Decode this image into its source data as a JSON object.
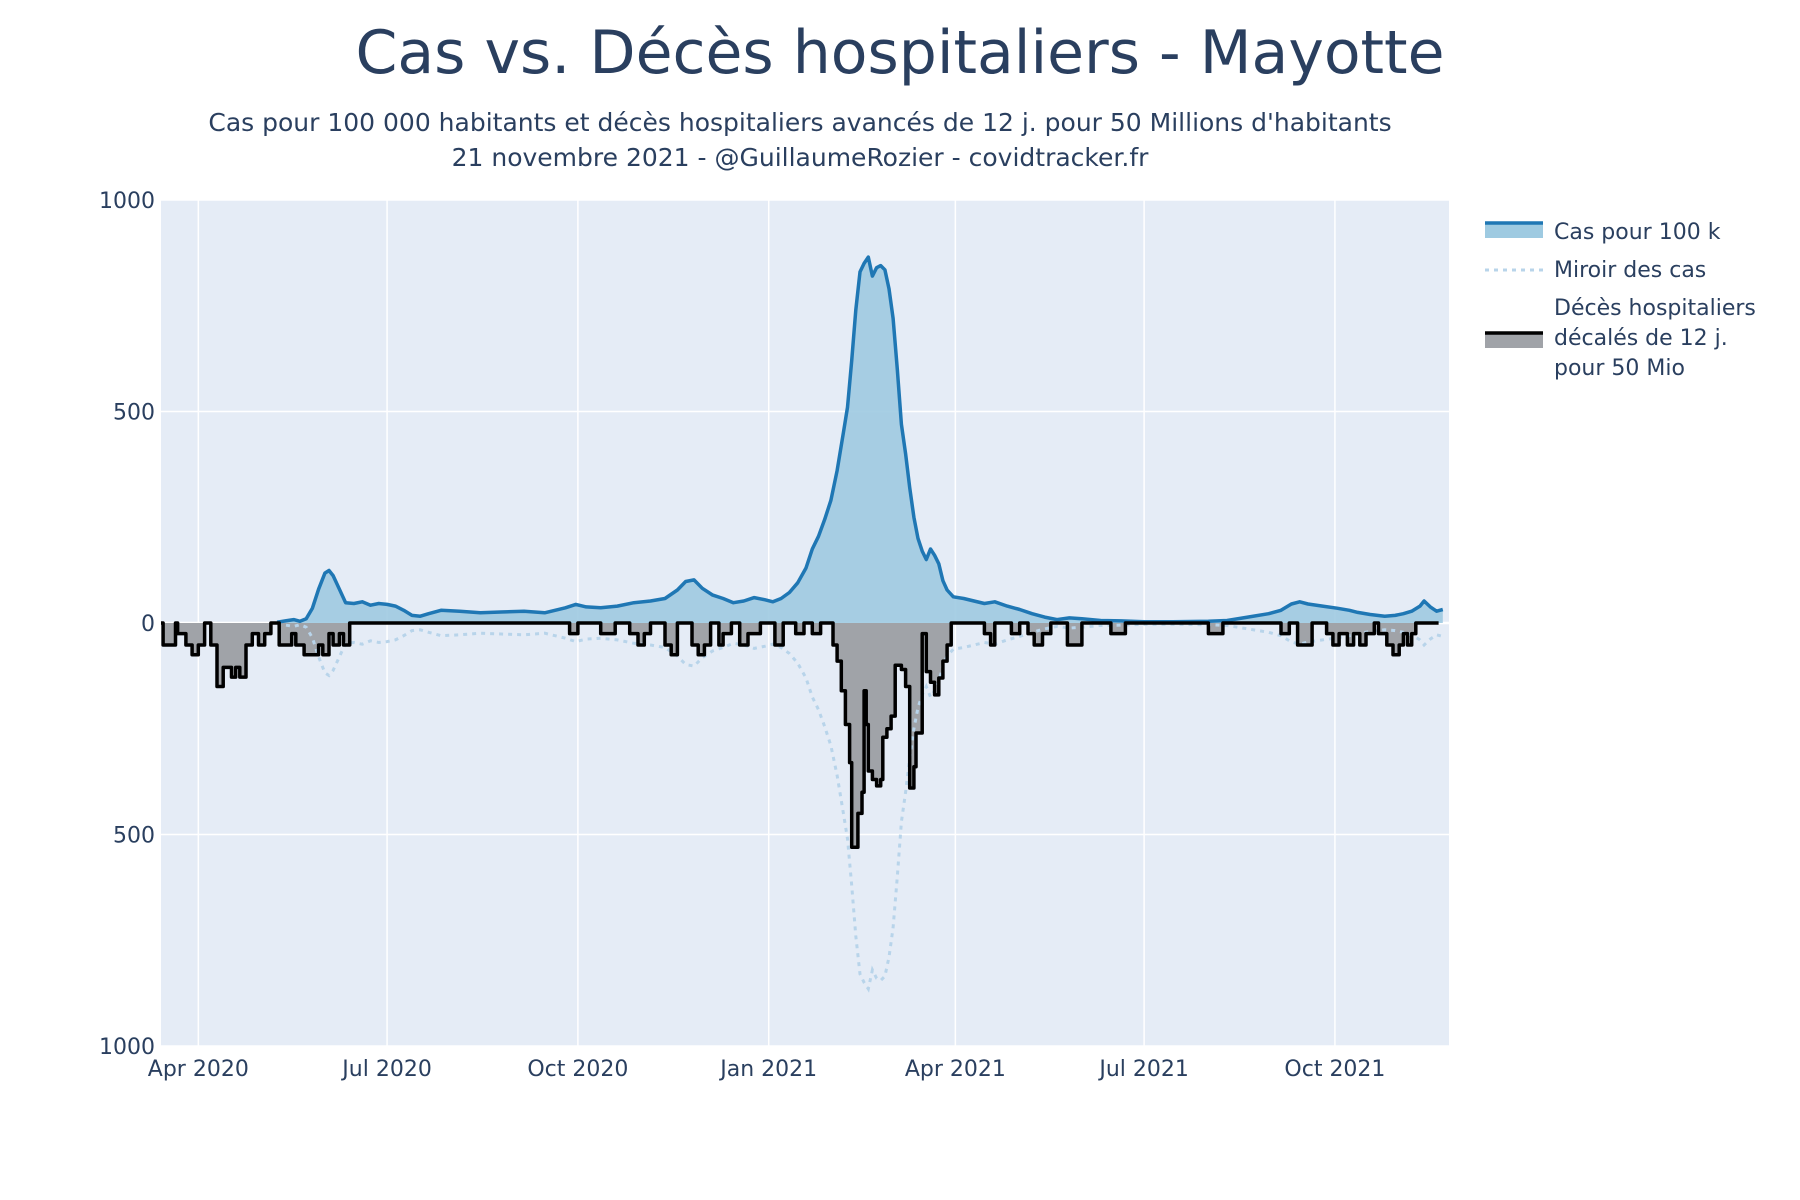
{
  "title": "Cas vs. Décès hospitaliers - Mayotte",
  "subtitle_line1": "Cas pour 100 000 habitants et décès hospitaliers avancés de 12 j. pour 50 Millions d'habitants",
  "subtitle_line2": "21 novembre 2021 - @GuillaumeRozier - covidtracker.fr",
  "colors": {
    "plot_bg": "#e5ecf6",
    "cases_line": "#1f77b4",
    "cases_fill": "#9ecae1",
    "mirror_line": "#b8d4ea",
    "deaths_line": "#000000",
    "deaths_fill": "#a0a3a8",
    "grid": "#ffffff"
  },
  "chart_data": {
    "type": "area",
    "x_axis": {
      "type": "date",
      "range": [
        "2020-03-14",
        "2021-11-25"
      ],
      "ticks": [
        {
          "date": "2020-04-01",
          "label": "Apr 2020"
        },
        {
          "date": "2020-07-01",
          "label": "Jul 2020"
        },
        {
          "date": "2020-10-01",
          "label": "Oct 2020"
        },
        {
          "date": "2021-01-01",
          "label": "Jan 2021"
        },
        {
          "date": "2021-04-01",
          "label": "Apr 2021"
        },
        {
          "date": "2021-07-01",
          "label": "Jul 2021"
        },
        {
          "date": "2021-10-01",
          "label": "Oct 2021"
        }
      ]
    },
    "y_axis": {
      "range": [
        -1000,
        1000
      ],
      "ticks": [
        {
          "value": 1000,
          "label": "1000"
        },
        {
          "value": 500,
          "label": "500"
        },
        {
          "value": 0,
          "label": "0"
        },
        {
          "value": -500,
          "label": "500"
        },
        {
          "value": -1000,
          "label": "1000"
        }
      ]
    },
    "legend": {
      "placement": "right",
      "entries": [
        {
          "key": "cases",
          "label": "Cas pour 100 k"
        },
        {
          "key": "mirror",
          "label": "Miroir des cas"
        },
        {
          "key": "deaths",
          "label_lines": [
            "Décès hospitaliers",
            "décalés de 12 j.",
            "pour 50 Mio"
          ]
        }
      ]
    },
    "series": [
      {
        "key": "cases",
        "name": "Cas pour 100 k",
        "points": [
          [
            "2020-05-09",
            2
          ],
          [
            "2020-05-13",
            5
          ],
          [
            "2020-05-17",
            8
          ],
          [
            "2020-05-20",
            4
          ],
          [
            "2020-05-23",
            10
          ],
          [
            "2020-05-26",
            35
          ],
          [
            "2020-05-29",
            80
          ],
          [
            "2020-06-01",
            118
          ],
          [
            "2020-06-03",
            124
          ],
          [
            "2020-06-05",
            112
          ],
          [
            "2020-06-08",
            80
          ],
          [
            "2020-06-11",
            48
          ],
          [
            "2020-06-15",
            46
          ],
          [
            "2020-06-19",
            50
          ],
          [
            "2020-06-23",
            42
          ],
          [
            "2020-06-27",
            46
          ],
          [
            "2020-07-01",
            44
          ],
          [
            "2020-07-05",
            40
          ],
          [
            "2020-07-09",
            30
          ],
          [
            "2020-07-13",
            18
          ],
          [
            "2020-07-17",
            16
          ],
          [
            "2020-07-21",
            22
          ],
          [
            "2020-07-27",
            30
          ],
          [
            "2020-08-05",
            28
          ],
          [
            "2020-08-15",
            24
          ],
          [
            "2020-08-25",
            26
          ],
          [
            "2020-09-05",
            28
          ],
          [
            "2020-09-15",
            24
          ],
          [
            "2020-09-25",
            36
          ],
          [
            "2020-09-30",
            44
          ],
          [
            "2020-10-05",
            38
          ],
          [
            "2020-10-12",
            36
          ],
          [
            "2020-10-20",
            40
          ],
          [
            "2020-10-28",
            48
          ],
          [
            "2020-11-05",
            52
          ],
          [
            "2020-11-12",
            58
          ],
          [
            "2020-11-18",
            78
          ],
          [
            "2020-11-22",
            98
          ],
          [
            "2020-11-26",
            102
          ],
          [
            "2020-11-30",
            82
          ],
          [
            "2020-12-05",
            66
          ],
          [
            "2020-12-10",
            58
          ],
          [
            "2020-12-15",
            48
          ],
          [
            "2020-12-20",
            52
          ],
          [
            "2020-12-25",
            60
          ],
          [
            "2020-12-30",
            55
          ],
          [
            "2021-01-03",
            50
          ],
          [
            "2021-01-07",
            58
          ],
          [
            "2021-01-11",
            72
          ],
          [
            "2021-01-15",
            95
          ],
          [
            "2021-01-19",
            130
          ],
          [
            "2021-01-22",
            175
          ],
          [
            "2021-01-25",
            205
          ],
          [
            "2021-01-28",
            245
          ],
          [
            "2021-01-31",
            290
          ],
          [
            "2021-02-03",
            360
          ],
          [
            "2021-02-06",
            450
          ],
          [
            "2021-02-08",
            510
          ],
          [
            "2021-02-10",
            620
          ],
          [
            "2021-02-12",
            740
          ],
          [
            "2021-02-14",
            830
          ],
          [
            "2021-02-16",
            850
          ],
          [
            "2021-02-18",
            865
          ],
          [
            "2021-02-20",
            820
          ],
          [
            "2021-02-22",
            840
          ],
          [
            "2021-02-24",
            845
          ],
          [
            "2021-02-26",
            835
          ],
          [
            "2021-02-28",
            790
          ],
          [
            "2021-03-02",
            720
          ],
          [
            "2021-03-04",
            600
          ],
          [
            "2021-03-06",
            470
          ],
          [
            "2021-03-08",
            400
          ],
          [
            "2021-03-10",
            320
          ],
          [
            "2021-03-12",
            250
          ],
          [
            "2021-03-14",
            200
          ],
          [
            "2021-03-16",
            170
          ],
          [
            "2021-03-18",
            150
          ],
          [
            "2021-03-20",
            175
          ],
          [
            "2021-03-22",
            160
          ],
          [
            "2021-03-24",
            140
          ],
          [
            "2021-03-26",
            100
          ],
          [
            "2021-03-28",
            78
          ],
          [
            "2021-03-31",
            62
          ],
          [
            "2021-04-05",
            58
          ],
          [
            "2021-04-10",
            52
          ],
          [
            "2021-04-15",
            46
          ],
          [
            "2021-04-20",
            50
          ],
          [
            "2021-04-26",
            40
          ],
          [
            "2021-05-02",
            32
          ],
          [
            "2021-05-08",
            22
          ],
          [
            "2021-05-14",
            14
          ],
          [
            "2021-05-20",
            8
          ],
          [
            "2021-05-26",
            12
          ],
          [
            "2021-06-01",
            10
          ],
          [
            "2021-06-10",
            6
          ],
          [
            "2021-06-20",
            5
          ],
          [
            "2021-07-01",
            3
          ],
          [
            "2021-07-15",
            3
          ],
          [
            "2021-08-01",
            4
          ],
          [
            "2021-08-10",
            6
          ],
          [
            "2021-08-20",
            14
          ],
          [
            "2021-08-30",
            22
          ],
          [
            "2021-09-05",
            30
          ],
          [
            "2021-09-10",
            45
          ],
          [
            "2021-09-14",
            50
          ],
          [
            "2021-09-18",
            45
          ],
          [
            "2021-09-25",
            40
          ],
          [
            "2021-10-02",
            35
          ],
          [
            "2021-10-08",
            30
          ],
          [
            "2021-10-12",
            25
          ],
          [
            "2021-10-18",
            20
          ],
          [
            "2021-10-25",
            16
          ],
          [
            "2021-10-30",
            18
          ],
          [
            "2021-11-03",
            22
          ],
          [
            "2021-11-07",
            28
          ],
          [
            "2021-11-11",
            40
          ],
          [
            "2021-11-13",
            52
          ],
          [
            "2021-11-16",
            38
          ],
          [
            "2021-11-19",
            28
          ],
          [
            "2021-11-22",
            32
          ]
        ]
      },
      {
        "key": "mirror",
        "name": "Miroir des cas",
        "mirror_of": "cases"
      },
      {
        "key": "deaths",
        "name": "Décès hospitaliers décalés de 12 j. pour 50 Mio",
        "steps": [
          [
            "2020-03-14",
            0
          ],
          [
            "2020-03-15",
            -52
          ],
          [
            "2020-03-21",
            0
          ],
          [
            "2020-03-22",
            -25
          ],
          [
            "2020-03-26",
            -52
          ],
          [
            "2020-03-29",
            -75
          ],
          [
            "2020-04-01",
            -52
          ],
          [
            "2020-04-04",
            0
          ],
          [
            "2020-04-07",
            -52
          ],
          [
            "2020-04-10",
            -150
          ],
          [
            "2020-04-13",
            -105
          ],
          [
            "2020-04-17",
            -128
          ],
          [
            "2020-04-19",
            -105
          ],
          [
            "2020-04-21",
            -128
          ],
          [
            "2020-04-24",
            -52
          ],
          [
            "2020-04-27",
            -25
          ],
          [
            "2020-04-30",
            -52
          ],
          [
            "2020-05-03",
            -25
          ],
          [
            "2020-05-06",
            0
          ],
          [
            "2020-05-10",
            -52
          ],
          [
            "2020-05-16",
            -25
          ],
          [
            "2020-05-18",
            -52
          ],
          [
            "2020-05-22",
            -75
          ],
          [
            "2020-05-29",
            -52
          ],
          [
            "2020-05-31",
            -75
          ],
          [
            "2020-06-03",
            -25
          ],
          [
            "2020-06-05",
            -52
          ],
          [
            "2020-06-08",
            -25
          ],
          [
            "2020-06-10",
            -52
          ],
          [
            "2020-06-13",
            0
          ],
          [
            "2020-09-27",
            -25
          ],
          [
            "2020-10-01",
            0
          ],
          [
            "2020-10-12",
            -25
          ],
          [
            "2020-10-19",
            0
          ],
          [
            "2020-10-26",
            -25
          ],
          [
            "2020-10-30",
            -52
          ],
          [
            "2020-11-02",
            -25
          ],
          [
            "2020-11-05",
            0
          ],
          [
            "2020-11-12",
            -52
          ],
          [
            "2020-11-15",
            -75
          ],
          [
            "2020-11-18",
            0
          ],
          [
            "2020-11-25",
            -52
          ],
          [
            "2020-11-28",
            -75
          ],
          [
            "2020-12-01",
            -52
          ],
          [
            "2020-12-04",
            0
          ],
          [
            "2020-12-08",
            -52
          ],
          [
            "2020-12-10",
            -25
          ],
          [
            "2020-12-14",
            0
          ],
          [
            "2020-12-18",
            -52
          ],
          [
            "2020-12-22",
            -25
          ],
          [
            "2020-12-28",
            0
          ],
          [
            "2021-01-04",
            -52
          ],
          [
            "2021-01-08",
            0
          ],
          [
            "2021-01-14",
            -25
          ],
          [
            "2021-01-18",
            0
          ],
          [
            "2021-01-22",
            -25
          ],
          [
            "2021-01-26",
            0
          ],
          [
            "2021-02-01",
            -52
          ],
          [
            "2021-02-03",
            -90
          ],
          [
            "2021-02-05",
            -160
          ],
          [
            "2021-02-07",
            -240
          ],
          [
            "2021-02-09",
            -330
          ],
          [
            "2021-02-10",
            -530
          ],
          [
            "2021-02-13",
            -450
          ],
          [
            "2021-02-15",
            -400
          ],
          [
            "2021-02-16",
            -160
          ],
          [
            "2021-02-17",
            -240
          ],
          [
            "2021-02-18",
            -350
          ],
          [
            "2021-02-20",
            -370
          ],
          [
            "2021-02-22",
            -385
          ],
          [
            "2021-02-24",
            -370
          ],
          [
            "2021-02-25",
            -270
          ],
          [
            "2021-02-27",
            -250
          ],
          [
            "2021-03-01",
            -220
          ],
          [
            "2021-03-03",
            -100
          ],
          [
            "2021-03-06",
            -110
          ],
          [
            "2021-03-08",
            -150
          ],
          [
            "2021-03-10",
            -390
          ],
          [
            "2021-03-12",
            -340
          ],
          [
            "2021-03-13",
            -260
          ],
          [
            "2021-03-16",
            -25
          ],
          [
            "2021-03-18",
            -115
          ],
          [
            "2021-03-20",
            -140
          ],
          [
            "2021-03-22",
            -170
          ],
          [
            "2021-03-24",
            -130
          ],
          [
            "2021-03-26",
            -90
          ],
          [
            "2021-03-28",
            -52
          ],
          [
            "2021-03-30",
            0
          ],
          [
            "2021-04-15",
            -25
          ],
          [
            "2021-04-18",
            -52
          ],
          [
            "2021-04-20",
            0
          ],
          [
            "2021-04-28",
            -25
          ],
          [
            "2021-05-02",
            0
          ],
          [
            "2021-05-06",
            -25
          ],
          [
            "2021-05-09",
            -52
          ],
          [
            "2021-05-13",
            -25
          ],
          [
            "2021-05-17",
            0
          ],
          [
            "2021-05-25",
            -52
          ],
          [
            "2021-06-01",
            0
          ],
          [
            "2021-06-15",
            -25
          ],
          [
            "2021-06-22",
            0
          ],
          [
            "2021-08-01",
            -25
          ],
          [
            "2021-08-08",
            0
          ],
          [
            "2021-09-05",
            -25
          ],
          [
            "2021-09-09",
            0
          ],
          [
            "2021-09-13",
            -52
          ],
          [
            "2021-09-20",
            0
          ],
          [
            "2021-09-27",
            -25
          ],
          [
            "2021-09-30",
            -52
          ],
          [
            "2021-10-03",
            -25
          ],
          [
            "2021-10-07",
            -52
          ],
          [
            "2021-10-10",
            -25
          ],
          [
            "2021-10-13",
            -52
          ],
          [
            "2021-10-16",
            -25
          ],
          [
            "2021-10-20",
            0
          ],
          [
            "2021-10-22",
            -25
          ],
          [
            "2021-10-26",
            -52
          ],
          [
            "2021-10-29",
            -75
          ],
          [
            "2021-11-01",
            -52
          ],
          [
            "2021-11-03",
            -25
          ],
          [
            "2021-11-05",
            -52
          ],
          [
            "2021-11-07",
            -25
          ],
          [
            "2021-11-09",
            0
          ],
          [
            "2021-11-20",
            0
          ]
        ]
      }
    ]
  }
}
